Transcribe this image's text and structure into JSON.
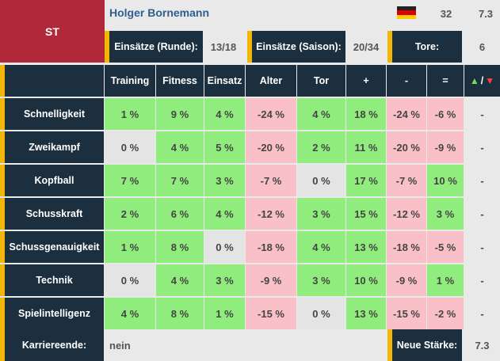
{
  "position": "ST",
  "player": {
    "name": "Holger Bornemann",
    "flag": "germany-flag",
    "age": "32",
    "strength": "7.3"
  },
  "stats": {
    "apps_round_label": "Einsätze (Runde):",
    "apps_round": "13/18",
    "apps_season_label": "Einsätze (Saison):",
    "apps_season": "20/34",
    "goals_label": "Tore:",
    "goals": "6"
  },
  "columns": [
    "Training",
    "Fitness",
    "Einsatz",
    "Alter",
    "Tor",
    "+",
    "-",
    "=",
    "/"
  ],
  "rows": [
    {
      "label": "Schnelligkeit",
      "cells": [
        {
          "v": "1 %",
          "c": "g"
        },
        {
          "v": "9 %",
          "c": "g"
        },
        {
          "v": "4 %",
          "c": "g"
        },
        {
          "v": "-24 %",
          "c": "r"
        },
        {
          "v": "4 %",
          "c": "g"
        },
        {
          "v": "18 %",
          "c": "g"
        },
        {
          "v": "-24 %",
          "c": "r"
        },
        {
          "v": "-6 %",
          "c": "r"
        },
        {
          "v": "-",
          "c": "plain"
        }
      ]
    },
    {
      "label": "Zweikampf",
      "cells": [
        {
          "v": "0 %",
          "c": "w"
        },
        {
          "v": "4 %",
          "c": "g"
        },
        {
          "v": "5 %",
          "c": "g"
        },
        {
          "v": "-20 %",
          "c": "r"
        },
        {
          "v": "2 %",
          "c": "g"
        },
        {
          "v": "11 %",
          "c": "g"
        },
        {
          "v": "-20 %",
          "c": "r"
        },
        {
          "v": "-9 %",
          "c": "r"
        },
        {
          "v": "-",
          "c": "plain"
        }
      ]
    },
    {
      "label": "Kopfball",
      "cells": [
        {
          "v": "7 %",
          "c": "g"
        },
        {
          "v": "7 %",
          "c": "g"
        },
        {
          "v": "3 %",
          "c": "g"
        },
        {
          "v": "-7 %",
          "c": "r"
        },
        {
          "v": "0 %",
          "c": "w"
        },
        {
          "v": "17 %",
          "c": "g"
        },
        {
          "v": "-7 %",
          "c": "r"
        },
        {
          "v": "10 %",
          "c": "g"
        },
        {
          "v": "-",
          "c": "plain"
        }
      ]
    },
    {
      "label": "Schusskraft",
      "cells": [
        {
          "v": "2 %",
          "c": "g"
        },
        {
          "v": "6 %",
          "c": "g"
        },
        {
          "v": "4 %",
          "c": "g"
        },
        {
          "v": "-12 %",
          "c": "r"
        },
        {
          "v": "3 %",
          "c": "g"
        },
        {
          "v": "15 %",
          "c": "g"
        },
        {
          "v": "-12 %",
          "c": "r"
        },
        {
          "v": "3 %",
          "c": "g"
        },
        {
          "v": "-",
          "c": "plain"
        }
      ]
    },
    {
      "label": "Schussgenauigkeit",
      "cells": [
        {
          "v": "1 %",
          "c": "g"
        },
        {
          "v": "8 %",
          "c": "g"
        },
        {
          "v": "0 %",
          "c": "w"
        },
        {
          "v": "-18 %",
          "c": "r"
        },
        {
          "v": "4 %",
          "c": "g"
        },
        {
          "v": "13 %",
          "c": "g"
        },
        {
          "v": "-18 %",
          "c": "r"
        },
        {
          "v": "-5 %",
          "c": "r"
        },
        {
          "v": "-",
          "c": "plain"
        }
      ]
    },
    {
      "label": "Technik",
      "cells": [
        {
          "v": "0 %",
          "c": "w"
        },
        {
          "v": "4 %",
          "c": "g"
        },
        {
          "v": "3 %",
          "c": "g"
        },
        {
          "v": "-9 %",
          "c": "r"
        },
        {
          "v": "3 %",
          "c": "g"
        },
        {
          "v": "10 %",
          "c": "g"
        },
        {
          "v": "-9 %",
          "c": "r"
        },
        {
          "v": "1 %",
          "c": "g"
        },
        {
          "v": "-",
          "c": "plain"
        }
      ]
    },
    {
      "label": "Spielintelligenz",
      "cells": [
        {
          "v": "4 %",
          "c": "g"
        },
        {
          "v": "8 %",
          "c": "g"
        },
        {
          "v": "1 %",
          "c": "g"
        },
        {
          "v": "-15 %",
          "c": "r"
        },
        {
          "v": "0 %",
          "c": "w"
        },
        {
          "v": "13 %",
          "c": "g"
        },
        {
          "v": "-15 %",
          "c": "r"
        },
        {
          "v": "-2 %",
          "c": "r"
        },
        {
          "v": "-",
          "c": "plain"
        }
      ]
    }
  ],
  "footer": {
    "career_end_label": "Karriereende:",
    "career_end": "nein",
    "new_strength_label": "Neue Stärke:",
    "new_strength": "7.3"
  },
  "colors": {
    "header_red": "#b0283a",
    "dark": "#1c2f3f",
    "accent_yellow": "#f2b705",
    "green": "#90ed7d",
    "red": "#f9c0c8",
    "neutral": "#e4e4e4"
  }
}
